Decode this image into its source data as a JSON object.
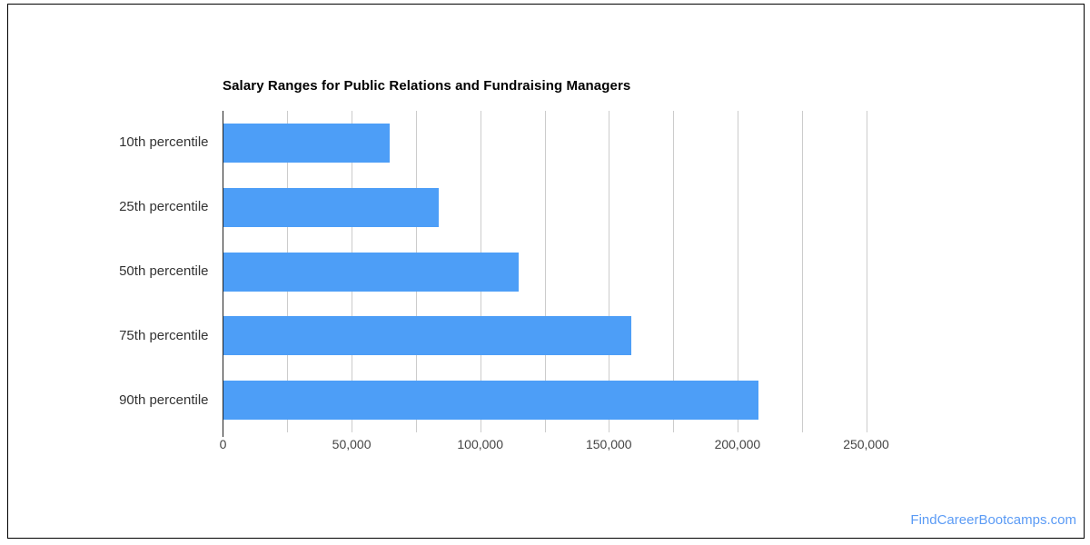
{
  "frame": {
    "background": "#ffffff",
    "border_color": "#000000"
  },
  "chart_data": {
    "type": "bar",
    "orientation": "horizontal",
    "title": "Salary Ranges for Public Relations and Fundraising Managers",
    "categories": [
      "10th percentile",
      "25th percentile",
      "50th percentile",
      "75th percentile",
      "90th percentile"
    ],
    "values": [
      64790,
      83540,
      114800,
      158560,
      208000
    ],
    "xlabel": "",
    "ylabel": "",
    "xlim": [
      0,
      250000
    ],
    "xticks": [
      0,
      50000,
      100000,
      150000,
      200000,
      250000
    ],
    "xtick_labels": [
      "0",
      "50,000",
      "100,000",
      "150,000",
      "200,000",
      "250,000"
    ],
    "grid": true,
    "grid_step": 25000,
    "legend": "none",
    "bar_color": "#4d9ef7",
    "gridline_color": "#cccccc",
    "axis_color": "#212121",
    "title_color": "#000000",
    "category_label_color": "#333333",
    "tick_label_color": "#444444"
  },
  "footer": {
    "text": "FindCareerBootcamps.com",
    "color": "#5b9bf5"
  }
}
